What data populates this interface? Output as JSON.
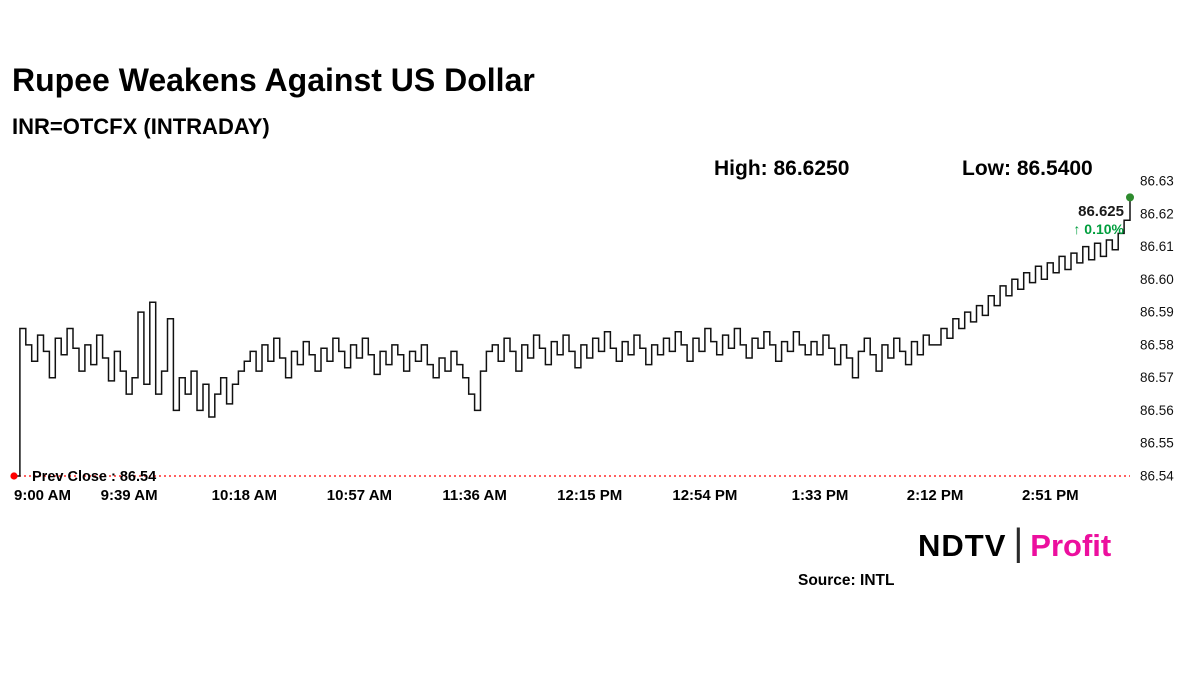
{
  "header": {
    "title": "Rupee Weakens Against US Dollar",
    "subtitle": "INR=OTCFX (INTRADAY)"
  },
  "stats": {
    "high_label": "High: 86.6250",
    "low_label": "Low: 86.5400"
  },
  "annotation": {
    "price": "86.625",
    "change": "↑ 0.10%"
  },
  "prev_close": {
    "label": "Prev Close : 86.54",
    "value": 86.54
  },
  "colors": {
    "line": "#111111",
    "prev_close_red": "#ff0000",
    "up_green": "#009e3d",
    "end_dot_green": "#2e8b2e",
    "brand_pink": "#ec0f9e"
  },
  "footer": {
    "source": "Source: INTL",
    "brand_ndtv": "NDTV",
    "brand_sep": "|",
    "brand_profit": "Profit"
  },
  "chart_data": {
    "type": "line",
    "title": "Rupee Weakens Against US Dollar",
    "subtitle": "INR=OTCFX (INTRADAY)",
    "symbol": "INR=OTCFX",
    "session_high": 86.625,
    "session_low": 86.54,
    "prev_close": 86.54,
    "last_price": 86.625,
    "change_pct": "+0.10%",
    "ylim": [
      86.54,
      86.63
    ],
    "y_ticks": [
      "86.63",
      "86.62",
      "86.61",
      "86.60",
      "86.59",
      "86.58",
      "86.57",
      "86.56",
      "86.55",
      "86.54"
    ],
    "x_ticks": [
      "9:00 AM",
      "9:39 AM",
      "10:18 AM",
      "10:57 AM",
      "11:36 AM",
      "12:15 PM",
      "12:54 PM",
      "1:33 PM",
      "2:12 PM",
      "2:51 PM"
    ],
    "x_tick_interval_minutes": 39,
    "x_start_minutes": 540,
    "x_end_minutes": 918,
    "grid": false,
    "legend": false,
    "values": [
      86.54,
      86.585,
      86.58,
      86.575,
      86.583,
      86.578,
      86.57,
      86.582,
      86.577,
      86.585,
      86.579,
      86.572,
      86.58,
      86.574,
      86.583,
      86.576,
      86.569,
      86.578,
      86.572,
      86.565,
      86.57,
      86.59,
      86.568,
      86.593,
      86.565,
      86.572,
      86.588,
      86.56,
      86.57,
      86.565,
      86.572,
      86.56,
      86.568,
      86.558,
      86.565,
      86.57,
      86.562,
      86.568,
      86.572,
      86.575,
      86.578,
      86.572,
      86.58,
      86.575,
      86.582,
      86.576,
      86.57,
      86.578,
      86.574,
      86.581,
      86.577,
      86.572,
      86.579,
      86.575,
      86.582,
      86.578,
      86.573,
      86.58,
      86.576,
      86.582,
      86.577,
      86.571,
      86.578,
      86.574,
      86.58,
      86.577,
      86.572,
      86.578,
      86.575,
      86.58,
      86.574,
      86.57,
      86.576,
      86.572,
      86.578,
      86.574,
      86.57,
      86.565,
      86.56,
      86.572,
      86.578,
      86.58,
      86.575,
      86.582,
      86.578,
      86.572,
      86.58,
      86.576,
      86.583,
      86.579,
      86.574,
      86.581,
      86.577,
      86.583,
      86.578,
      86.573,
      86.58,
      86.576,
      86.582,
      86.578,
      86.584,
      86.579,
      86.575,
      86.581,
      86.577,
      86.583,
      86.579,
      86.574,
      86.58,
      86.577,
      86.582,
      86.578,
      86.584,
      86.58,
      86.575,
      86.582,
      86.578,
      86.585,
      86.581,
      86.577,
      86.583,
      86.579,
      86.585,
      86.58,
      86.576,
      86.582,
      86.579,
      86.584,
      86.58,
      86.575,
      86.581,
      86.578,
      86.584,
      86.58,
      86.577,
      86.581,
      86.577,
      86.583,
      86.579,
      86.574,
      86.58,
      86.576,
      86.57,
      86.578,
      86.582,
      86.577,
      86.572,
      86.58,
      86.576,
      86.582,
      86.578,
      86.574,
      86.581,
      86.577,
      86.583,
      86.58,
      86.58,
      86.585,
      86.582,
      86.588,
      86.585,
      86.59,
      86.587,
      86.592,
      86.589,
      86.595,
      86.592,
      86.598,
      86.595,
      86.6,
      86.597,
      86.602,
      86.599,
      86.604,
      86.6,
      86.605,
      86.602,
      86.607,
      86.603,
      86.608,
      86.605,
      86.61,
      86.606,
      86.611,
      86.607,
      86.612,
      86.609,
      86.614,
      86.618,
      86.625
    ]
  }
}
